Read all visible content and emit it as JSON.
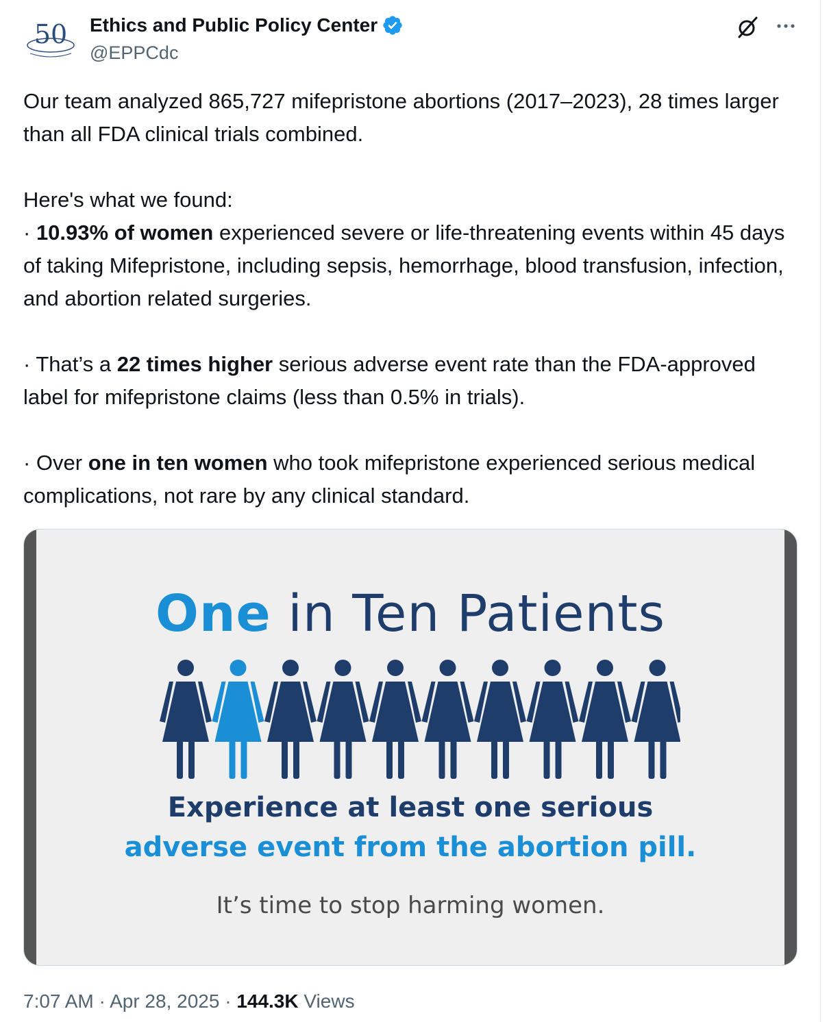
{
  "author": {
    "display_name": "Ethics and Public Policy Center",
    "handle": "@EPPCdc",
    "verified": true,
    "avatar_text": "50"
  },
  "tweet": {
    "p1": "Our team analyzed 865,727 mifepristone abortions (2017–2023), 28 times larger than all FDA clinical trials combined.",
    "p2": "Here's what we found:",
    "b1_bullet": "· ",
    "b1_bold": "10.93% of women",
    "b1_rest": " experienced severe or life-threatening events within 45 days of taking Mifepristone, including sepsis, hemorrhage, blood transfusion, infection, and abortion related surgeries.",
    "b2_pre": "· That’s a ",
    "b2_bold": "22 times higher",
    "b2_rest": " serious adverse event rate than the FDA-approved label for mifepristone claims (less than 0.5% in trials).",
    "b3_pre": "· Over ",
    "b3_bold": "one in ten women",
    "b3_rest": " who took mifepristone experienced serious medical complications, not rare by any clinical standard."
  },
  "media": {
    "headline_one": "One",
    "headline_rest": " in Ten Patients",
    "figure_count": 10,
    "highlighted_index": 1,
    "caption_line1": "Experience at least one serious",
    "caption_line2": "adverse event from the abortion pill.",
    "tagline": "It’s time to stop harming women."
  },
  "meta": {
    "time": "7:07 AM",
    "sep1": " · ",
    "date": "Apr 28, 2025",
    "sep2": " · ",
    "views_count": "144.3K",
    "views_label": " Views"
  },
  "colors": {
    "navy": "#1f3d6b",
    "blue": "#1b8fd6",
    "verified": "#1d9bf0"
  },
  "icons": {
    "verified": "verified-badge-icon",
    "grok": "grok-icon",
    "more": "more-icon"
  }
}
